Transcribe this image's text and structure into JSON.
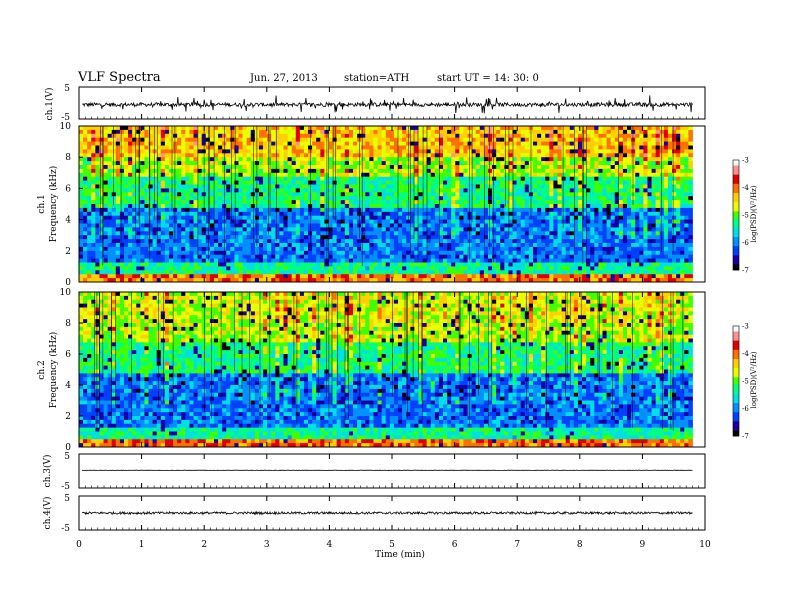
{
  "header": {
    "title": "VLF  Spectra",
    "date": "Jun. 27, 2013",
    "station": "station=ATH",
    "start": "start  UT  =   14: 30: 0"
  },
  "chart_data": [
    {
      "type": "line",
      "panel": "ch1-waveform",
      "ylabel": "ch.1(V)",
      "ylim": [
        -5,
        5
      ],
      "yticks": [
        "5",
        "-5"
      ],
      "xlim": [
        0,
        10
      ],
      "baseline": -0.5,
      "noise_amplitude": 0.6,
      "spike_amplitude": 2.5
    },
    {
      "type": "heatmap",
      "panel": "ch1-spectrogram",
      "ylabel": "ch.1\nFrequency (kHz)",
      "ylabel_lines": [
        "ch.1",
        "Frequency  (kHz)"
      ],
      "ylim": [
        0,
        10
      ],
      "yticks": [
        "0",
        "2",
        "4",
        "6",
        "8",
        "10"
      ],
      "xlim": [
        0,
        10
      ],
      "data_end_min": 9.8,
      "colorbar": {
        "label": "log(PSD)(V²/Hz)",
        "range": [
          -7,
          -3
        ],
        "ticks": [
          "-3",
          "-4",
          "-5",
          "-6",
          "-7"
        ]
      }
    },
    {
      "type": "heatmap",
      "panel": "ch2-spectrogram",
      "ylabel_lines": [
        "ch.2",
        "Frequency  (kHz)"
      ],
      "ylim": [
        0,
        10
      ],
      "yticks": [
        "0",
        "2",
        "4",
        "6",
        "8",
        "10"
      ],
      "xlim": [
        0,
        10
      ],
      "data_end_min": 9.8,
      "colorbar": {
        "label": "log(PSD)(V²/Hz)",
        "range": [
          -7,
          -3
        ],
        "ticks": [
          "-3",
          "-4",
          "-5",
          "-6",
          "-7"
        ]
      }
    },
    {
      "type": "line",
      "panel": "ch3-waveform",
      "ylabel": "ch.3(V)",
      "ylim": [
        -5,
        5
      ],
      "yticks": [
        "5",
        "-5"
      ],
      "xlim": [
        0,
        10
      ],
      "baseline": 0.2,
      "noise_amplitude": 0.05
    },
    {
      "type": "line",
      "panel": "ch4-waveform",
      "ylabel": "ch.4(V)",
      "ylim": [
        -5,
        5
      ],
      "yticks": [
        "5",
        "-5"
      ],
      "xlim": [
        0,
        10
      ],
      "baseline": 0.0,
      "noise_amplitude": 0.35
    }
  ],
  "xaxis": {
    "label": "Time  (min)",
    "ticks": [
      "0",
      "1",
      "2",
      "3",
      "4",
      "5",
      "6",
      "7",
      "8",
      "9",
      "10"
    ]
  },
  "colors": {
    "colormap": [
      "#000000",
      "#1a00a0",
      "#0040ff",
      "#0090ff",
      "#00e0e0",
      "#00ff80",
      "#40ff00",
      "#e8ff00",
      "#ffd000",
      "#ff7000",
      "#e00000",
      "#ff9090",
      "#ffffff"
    ]
  }
}
